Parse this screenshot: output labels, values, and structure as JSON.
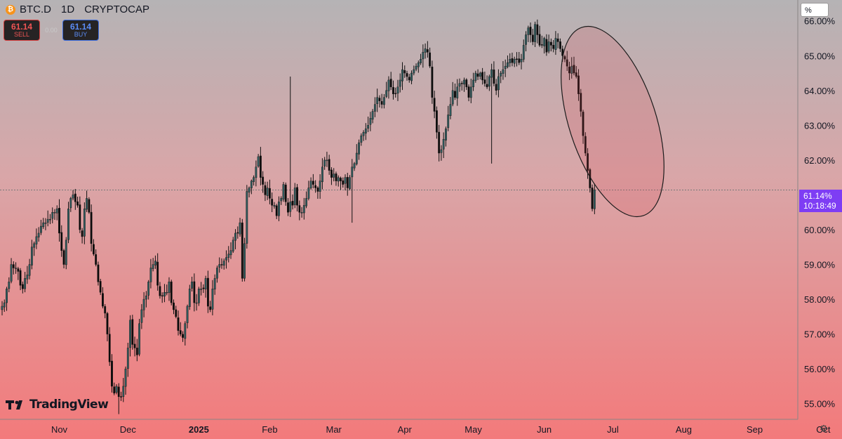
{
  "header": {
    "symbol": "BTC.D",
    "interval": "1D",
    "exchange": "CRYPTOCAP",
    "coin_glyph": "₿"
  },
  "trade": {
    "sell_price": "61.14",
    "sell_label": "SELL",
    "spread": "0.00",
    "buy_price": "61.14",
    "buy_label": "BUY"
  },
  "scale_unit": "%",
  "last_price_label": "61.14%",
  "countdown": "10:18:49",
  "brand": "TradingView",
  "colors": {
    "up_body": "#2f5a5c",
    "down_body": "#0b0b0b",
    "wick": "#111111",
    "last_label_bg": "#7e3df4"
  },
  "chart_data": {
    "type": "candlestick",
    "symbol": "BTC.D",
    "interval": "1D",
    "ylim": [
      54.55,
      66.6
    ],
    "y_ticks": [
      "55.00%",
      "56.00%",
      "57.00%",
      "58.00%",
      "59.00%",
      "60.00%",
      "61.00%",
      "62.00%",
      "63.00%",
      "64.00%",
      "65.00%",
      "66.00%"
    ],
    "y_tick_values": [
      55,
      56,
      57,
      58,
      59,
      60,
      61,
      62,
      63,
      64,
      65,
      66
    ],
    "x_ticks": [
      {
        "label": "Nov",
        "day": 25,
        "bold": false
      },
      {
        "label": "Dec",
        "day": 55,
        "bold": false
      },
      {
        "label": "2025",
        "day": 86,
        "bold": true
      },
      {
        "label": "Feb",
        "day": 117,
        "bold": false
      },
      {
        "label": "Mar",
        "day": 145,
        "bold": false
      },
      {
        "label": "Apr",
        "day": 176,
        "bold": false
      },
      {
        "label": "May",
        "day": 206,
        "bold": false
      },
      {
        "label": "Jun",
        "day": 237,
        "bold": false
      },
      {
        "label": "Jul",
        "day": 267,
        "bold": false
      },
      {
        "label": "Aug",
        "day": 298,
        "bold": false
      },
      {
        "label": "Sep",
        "day": 329,
        "bold": false
      },
      {
        "label": "Oct",
        "day": 359,
        "bold": false
      }
    ],
    "last_price": 61.14,
    "closes": [
      57.8,
      57.9,
      58.3,
      58.5,
      59.0,
      58.9,
      58.9,
      58.8,
      58.4,
      58.3,
      58.6,
      58.7,
      59.0,
      59.5,
      59.6,
      59.8,
      59.9,
      60.1,
      60.2,
      60.2,
      60.3,
      60.3,
      60.5,
      60.5,
      60.6,
      59.9,
      59.4,
      59.0,
      59.7,
      60.6,
      60.9,
      61.0,
      60.8,
      60.7,
      60.0,
      59.8,
      60.6,
      60.9,
      60.5,
      59.6,
      59.3,
      59.0,
      58.5,
      58.2,
      57.8,
      57.6,
      57.0,
      56.2,
      55.5,
      55.3,
      55.5,
      55.2,
      55.2,
      55.5,
      56.0,
      56.6,
      57.4,
      56.7,
      56.6,
      56.4,
      57.3,
      57.7,
      58.0,
      58.1,
      58.5,
      58.9,
      59.0,
      59.1,
      58.4,
      58.1,
      58.1,
      58.2,
      58.2,
      58.5,
      57.9,
      57.7,
      57.5,
      57.1,
      57.0,
      56.9,
      57.3,
      57.8,
      58.3,
      58.5,
      57.9,
      57.9,
      58.3,
      58.3,
      58.3,
      58.6,
      57.8,
      57.7,
      58.3,
      58.6,
      58.9,
      59.0,
      59.0,
      59.1,
      59.2,
      59.3,
      59.4,
      59.7,
      59.9,
      59.9,
      60.2,
      58.6,
      59.6,
      61.1,
      61.2,
      61.4,
      61.5,
      61.8,
      62.1,
      61.5,
      61.3,
      61.0,
      61.2,
      60.9,
      60.7,
      60.7,
      60.4,
      60.8,
      60.9,
      61.3,
      60.8,
      60.5,
      60.8,
      60.7,
      61.2,
      60.7,
      60.5,
      60.5,
      60.7,
      60.9,
      61.2,
      61.4,
      61.3,
      61.2,
      61.1,
      61.4,
      61.8,
      62.0,
      62.0,
      61.7,
      61.5,
      61.6,
      61.4,
      61.5,
      61.4,
      61.3,
      61.5,
      61.2,
      61.5,
      61.8,
      61.9,
      62.2,
      62.5,
      62.7,
      62.8,
      62.9,
      63.0,
      63.2,
      63.4,
      63.6,
      63.8,
      63.7,
      63.6,
      63.8,
      64.0,
      64.3,
      64.1,
      63.9,
      63.9,
      64.1,
      64.3,
      64.6,
      64.5,
      64.4,
      64.3,
      64.5,
      64.6,
      64.7,
      64.8,
      64.9,
      65.1,
      65.2,
      65.1,
      64.7,
      63.8,
      63.4,
      62.8,
      62.2,
      62.3,
      62.6,
      62.9,
      63.3,
      63.6,
      64.0,
      63.8,
      64.1,
      64.2,
      64.2,
      64.3,
      64.1,
      63.8,
      64.1,
      64.3,
      64.5,
      64.4,
      64.5,
      64.3,
      64.2,
      64.1,
      64.4,
      64.6,
      64.2,
      64.0,
      64.4,
      64.5,
      64.6,
      64.7,
      64.8,
      64.9,
      64.8,
      64.9,
      64.9,
      64.8,
      64.9,
      65.3,
      65.6,
      65.8,
      65.6,
      65.4,
      65.9,
      65.6,
      65.3,
      65.3,
      65.5,
      65.1,
      65.4,
      65.3,
      65.2,
      65.5,
      65.4,
      65.2,
      65.0,
      64.9,
      64.7,
      64.5,
      64.7,
      64.5,
      64.4,
      63.9,
      63.4,
      62.7,
      62.2,
      61.7,
      61.2,
      60.6,
      61.14
    ],
    "extremes": [
      {
        "day": 126,
        "high": 64.4
      },
      {
        "day": 153,
        "low": 60.2
      },
      {
        "day": 51,
        "low": 54.7
      },
      {
        "day": 214,
        "low": 61.9
      },
      {
        "day": 300,
        "low": 60.45
      }
    ]
  }
}
